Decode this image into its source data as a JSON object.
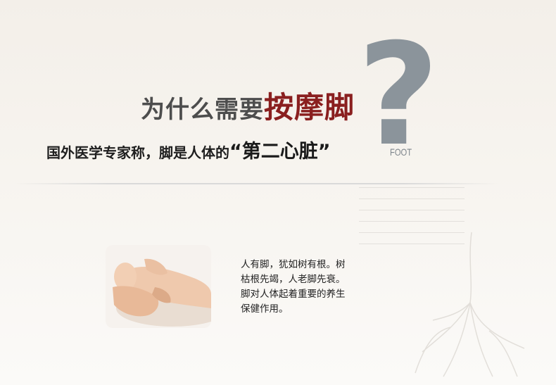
{
  "headline": {
    "plain": "为什么需要",
    "emphasis": "按摩脚"
  },
  "subline": {
    "text": "国外医学专家称，脚是人体的",
    "quote": "“第二心脏”"
  },
  "decoration": {
    "question_mark": "?",
    "foot_label": "FOOT"
  },
  "body": {
    "lines": [
      "人有脚，犹如树有根。树",
      "枯根先竭，人老脚先衰。",
      "脚对人体起着重要的养生",
      "保健作用。"
    ]
  },
  "colors": {
    "accent": "#8a1f1f",
    "heading_gray": "#4d4d4d",
    "question_mark": "#8b949b"
  },
  "icons": {
    "photo": "foot-massage-photo",
    "tree": "tree-roots-illustration"
  }
}
